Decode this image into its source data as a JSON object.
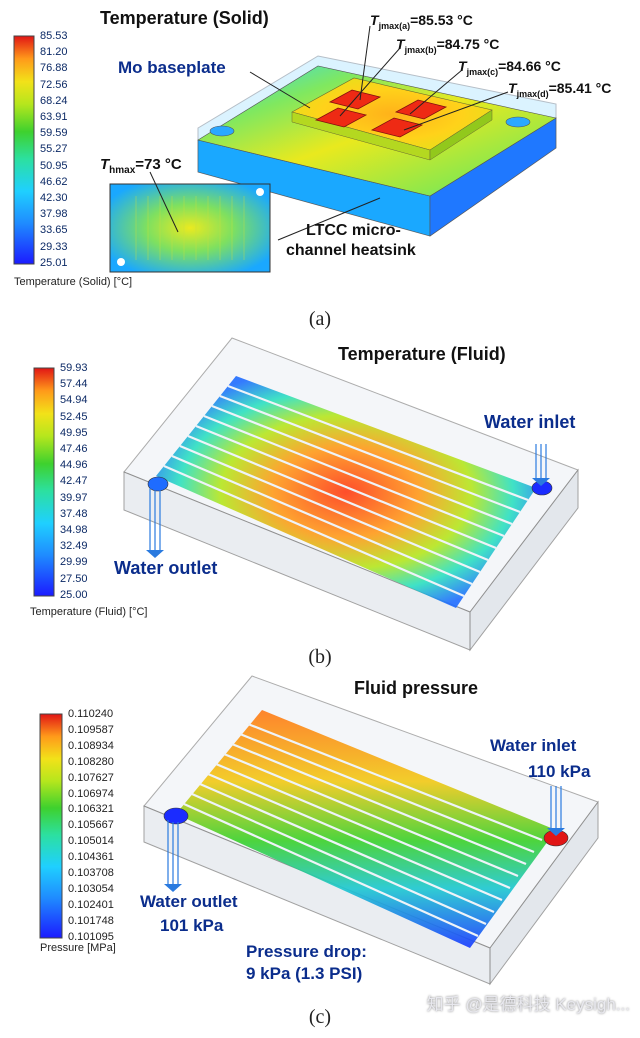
{
  "panel_a": {
    "title": "Temperature (Solid)",
    "caption": "(a)",
    "legend_title": "Temperature (Solid) [°C]",
    "ticks": [
      "85.53",
      "81.20",
      "76.88",
      "72.56",
      "68.24",
      "63.91",
      "59.59",
      "55.27",
      "50.95",
      "46.62",
      "42.30",
      "37.98",
      "33.65",
      "29.33",
      "25.01"
    ],
    "label_baseplate": "Mo baseplate",
    "label_heatsink_l1": "LTCC micro-",
    "label_heatsink_l2": "channel heatsink",
    "inset_label": "T",
    "inset_label_sub": "hmax",
    "inset_value": "=73 °C",
    "junctions": [
      {
        "t": "T",
        "sub": "jmax(a)",
        "value": "=85.53 °C"
      },
      {
        "t": "T",
        "sub": "jmax(b)",
        "value": "=84.75 °C"
      },
      {
        "t": "T",
        "sub": "jmax(c)",
        "value": "=84.66 °C"
      },
      {
        "t": "T",
        "sub": "jmax(d)",
        "value": "=85.41 °C"
      }
    ]
  },
  "panel_b": {
    "title": "Temperature (Fluid)",
    "caption": "(b)",
    "legend_title": "Temperature (Fluid) [°C]",
    "ticks": [
      "59.93",
      "57.44",
      "54.94",
      "52.45",
      "49.95",
      "47.46",
      "44.96",
      "42.47",
      "39.97",
      "37.48",
      "34.98",
      "32.49",
      "29.99",
      "27.50",
      "25.00"
    ],
    "inlet": "Water inlet",
    "outlet": "Water outlet"
  },
  "panel_c": {
    "title": "Fluid pressure",
    "caption": "(c)",
    "legend_title": "Pressure [MPa]",
    "ticks": [
      "0.110240",
      "0.109587",
      "0.108934",
      "0.108280",
      "0.107627",
      "0.106974",
      "0.106321",
      "0.105667",
      "0.105014",
      "0.104361",
      "0.103708",
      "0.103054",
      "0.102401",
      "0.101748",
      "0.101095"
    ],
    "inlet": "Water inlet",
    "inlet_value": "110 kPa",
    "outlet": "Water outlet",
    "outlet_value": "101 kPa",
    "drop_l1": "Pressure drop:",
    "drop_l2": "9 kPa (1.3 PSI)"
  },
  "watermark": "知乎 @是德科技 Keysigh...",
  "colors": {
    "scale": [
      "#1b1bff",
      "#1f8cff",
      "#1fd0ff",
      "#2ce0a0",
      "#3ed12e",
      "#b5e61d",
      "#f2e219",
      "#ff9a1a",
      "#ff2a10",
      "#e11515"
    ]
  }
}
